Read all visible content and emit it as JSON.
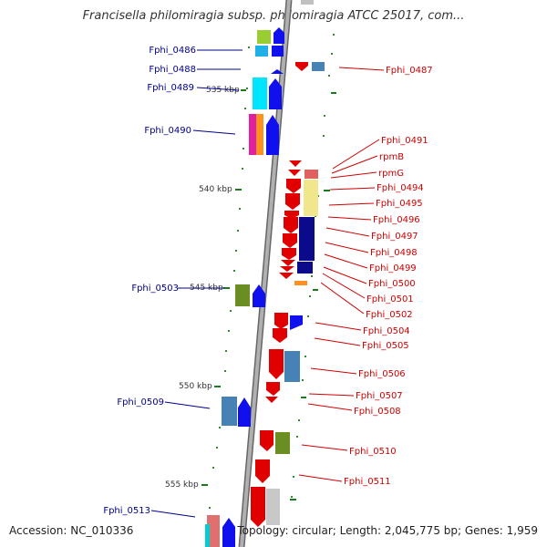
{
  "title": "Francisella philomiragia subsp. philomiragia ATCC 25017, com...",
  "footer": {
    "accession": "Accession: NC_010336",
    "summary": "Topology: circular; Length: 2,045,775 bp; Genes: 1,959"
  },
  "colors": {
    "left_label": "#00008b",
    "right_label": "#d00000",
    "tick": "#006400",
    "backbone": "#9a9a9a"
  },
  "kbp_ticks": [
    "535 kbp",
    "540 kbp",
    "545 kbp",
    "550 kbp",
    "555 kbp"
  ],
  "left_labels": [
    "Fphi_0486",
    "Fphi_0488",
    "Fphi_0489",
    "Fphi_0490",
    "Fphi_0503",
    "Fphi_0509",
    "Fphi_0513"
  ],
  "right_labels": [
    "Fphi_0487",
    "Fphi_0491",
    "rpmB",
    "rpmG",
    "Fphi_0494",
    "Fphi_0495",
    "Fphi_0496",
    "Fphi_0497",
    "Fphi_0498",
    "Fphi_0499",
    "Fphi_0500",
    "Fphi_0501",
    "Fphi_0502",
    "Fphi_0504",
    "Fphi_0505",
    "Fphi_0506",
    "Fphi_0507",
    "Fphi_0508",
    "Fphi_0510",
    "Fphi_0511"
  ]
}
